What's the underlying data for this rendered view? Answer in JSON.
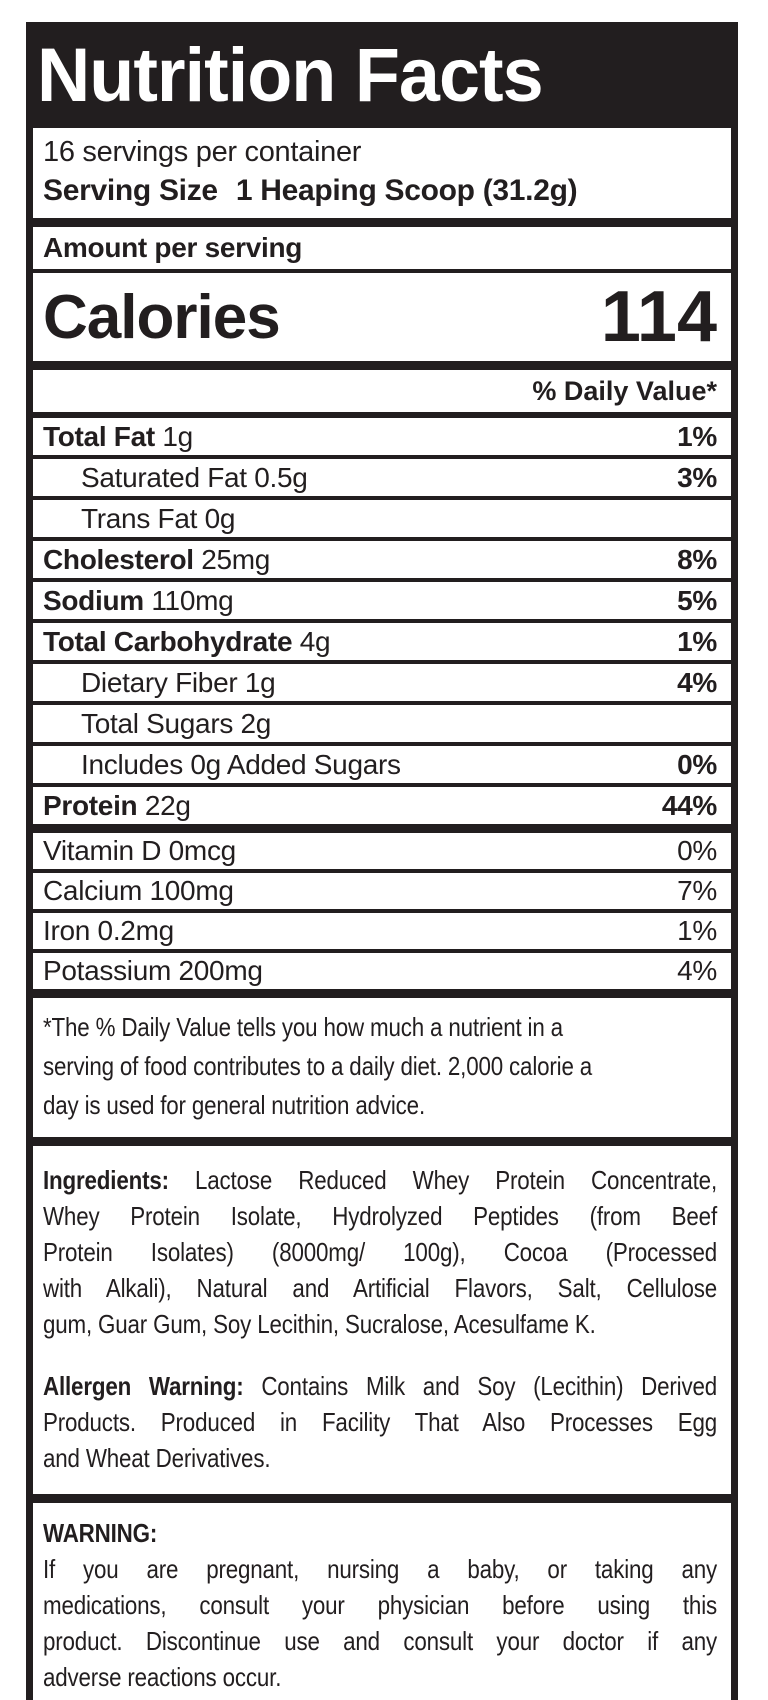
{
  "label": {
    "title": "Nutrition Facts",
    "servings_per_container": "16 servings per container",
    "serving_size_label": "Serving Size",
    "serving_size_value": "1 Heaping Scoop (31.2g)",
    "amount_per_serving": "Amount per serving",
    "calories_label": "Calories",
    "calories_value": "114",
    "daily_value_header": "% Daily Value*",
    "nutrients": [
      {
        "name": "Total Fat",
        "amount": "1g",
        "dv": "1%"
      },
      {
        "name": "Saturated Fat",
        "amount": "0.5g",
        "dv": "3%"
      },
      {
        "name": "Trans Fat",
        "amount": "0g",
        "dv": ""
      },
      {
        "name": "Cholesterol",
        "amount": "25mg",
        "dv": "8%"
      },
      {
        "name": "Sodium",
        "amount": "110mg",
        "dv": "5%"
      },
      {
        "name": "Total Carbohydrate",
        "amount": "4g",
        "dv": "1%"
      },
      {
        "name": "Dietary Fiber",
        "amount": "1g",
        "dv": "4%"
      },
      {
        "name": "Total Sugars",
        "amount": "2g",
        "dv": ""
      },
      {
        "name": "Includes 0g Added Sugars",
        "amount": "",
        "dv": "0%"
      },
      {
        "name": "Protein",
        "amount": "22g",
        "dv": "44%"
      }
    ],
    "micronutrients": [
      {
        "name": "Vitamin D",
        "amount": "0mcg",
        "dv": "0%"
      },
      {
        "name": "Calcium",
        "amount": "100mg",
        "dv": "7%"
      },
      {
        "name": "Iron",
        "amount": "0.2mg",
        "dv": "1%"
      },
      {
        "name": "Potassium",
        "amount": "200mg",
        "dv": "4%"
      }
    ],
    "footnote_lines": [
      "*The % Daily Value tells you how much a nutrient in a",
      "serving of food contributes to a daily diet. 2,000 calorie a",
      "day is used for general nutrition advice."
    ],
    "ingredients": {
      "label": "Ingredients:",
      "first_line": "Lactose Reduced Whey Protein Concentrate,",
      "rest_lines": [
        "Whey Protein Isolate, Hydrolyzed Peptides (from Beef",
        "Protein Isolates) (8000mg/ 100g), Cocoa (Processed",
        "with Alkali), Natural and Artificial Flavors, Salt, Cellulose",
        "gum, Guar Gum, Soy Lecithin, Sucralose, Acesulfame K."
      ]
    },
    "allergen": {
      "label": "Allergen Warning:",
      "first_line": "Contains Milk and Soy (Lecithin) Derived",
      "rest_lines": [
        "Products. Produced in Facility That Also Processes Egg",
        "and Wheat Derivatives."
      ]
    },
    "warning": {
      "heading": "WARNING:",
      "lines": [
        "If you are pregnant, nursing a baby, or taking any",
        "medications, consult your physician before using this",
        "product. Discontinue use and consult your doctor if any",
        "adverse reactions occur."
      ]
    }
  },
  "colors": {
    "ink": "#221e1f",
    "paper": "#ffffff"
  }
}
